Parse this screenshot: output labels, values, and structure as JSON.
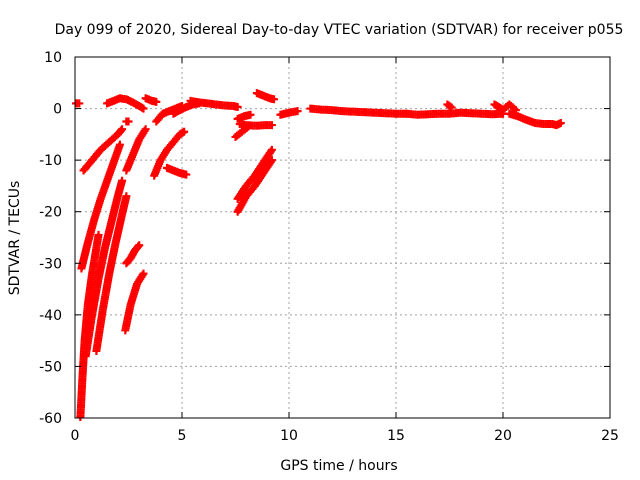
{
  "chart_data": {
    "type": "scatter",
    "title": "Day 099 of 2020, Sidereal Day-to-day VTEC variation (SDTVAR) for receiver p055",
    "xlabel": "GPS time / hours",
    "ylabel": "SDTVAR / TECUs",
    "xlim": [
      0,
      25
    ],
    "ylim": [
      -60,
      10
    ],
    "xticks": [
      "0",
      "5",
      "10",
      "15",
      "20",
      "25"
    ],
    "yticks": [
      "10",
      "0",
      "-10",
      "-20",
      "-30",
      "-40",
      "-50",
      "-60"
    ],
    "grid": true,
    "marker": "+",
    "color": "#ff0000",
    "arcs": [
      {
        "x": [
          0.0,
          0.2
        ],
        "y": [
          1.0,
          1.0
        ]
      },
      {
        "x": [
          0.25,
          0.35,
          0.45,
          0.6,
          0.8,
          1.0,
          1.1
        ],
        "y": [
          -60.0,
          -52.0,
          -45.0,
          -38.0,
          -32.0,
          -27.0,
          -24.5
        ]
      },
      {
        "x": [
          0.3,
          0.6,
          0.9,
          1.2,
          1.5,
          1.8,
          2.1
        ],
        "y": [
          -31.0,
          -26.0,
          -21.5,
          -17.5,
          -14.0,
          -10.5,
          -7.0
        ]
      },
      {
        "x": [
          0.4,
          0.8,
          1.2,
          1.6,
          2.0,
          2.2
        ],
        "y": [
          -12.0,
          -10.0,
          -8.0,
          -6.5,
          -5.0,
          -4.0
        ]
      },
      {
        "x": [
          0.5,
          0.8,
          1.1,
          1.4,
          1.7,
          2.0,
          2.2
        ],
        "y": [
          -48.0,
          -40.0,
          -33.0,
          -27.0,
          -22.0,
          -17.0,
          -14.0
        ]
      },
      {
        "x": [
          1.0,
          1.3,
          1.6,
          1.9,
          2.2,
          2.4
        ],
        "y": [
          -47.0,
          -39.0,
          -32.0,
          -26.0,
          -20.5,
          -17.0
        ]
      },
      {
        "x": [
          1.5,
          1.8,
          2.1,
          2.4,
          2.7,
          3.0,
          3.2
        ],
        "y": [
          1.0,
          1.5,
          2.0,
          1.8,
          1.2,
          0.5,
          0.0
        ]
      },
      {
        "x": [
          2.4,
          2.5
        ],
        "y": [
          -2.5,
          -2.5
        ]
      },
      {
        "x": [
          2.35,
          2.6,
          2.9,
          3.2
        ],
        "y": [
          -43.0,
          -38.0,
          -34.0,
          -32.0
        ]
      },
      {
        "x": [
          2.4,
          2.6,
          2.8,
          3.0
        ],
        "y": [
          -30.0,
          -29.0,
          -27.5,
          -26.5
        ]
      },
      {
        "x": [
          2.4,
          2.7,
          3.0,
          3.3
        ],
        "y": [
          -12.0,
          -9.0,
          -6.0,
          -4.0
        ]
      },
      {
        "x": [
          3.3,
          3.6,
          3.8
        ],
        "y": [
          2.0,
          1.5,
          1.3
        ]
      },
      {
        "x": [
          3.7,
          4.0,
          4.3,
          4.6,
          4.9,
          5.1
        ],
        "y": [
          -13.0,
          -10.0,
          -8.0,
          -6.5,
          -5.0,
          -4.5
        ]
      },
      {
        "x": [
          3.8,
          4.1,
          4.4,
          4.7,
          5.0
        ],
        "y": [
          -2.5,
          -1.0,
          -0.5,
          0.0,
          0.5
        ]
      },
      {
        "x": [
          4.3,
          4.6,
          4.9,
          5.2
        ],
        "y": [
          -11.5,
          -12.0,
          -12.5,
          -12.8
        ]
      },
      {
        "x": [
          4.6,
          4.9,
          5.2,
          5.5,
          5.8
        ],
        "y": [
          -1.0,
          -0.3,
          0.3,
          0.8,
          1.0
        ]
      },
      {
        "x": [
          5.4,
          5.8,
          6.2,
          6.6,
          7.0,
          7.4,
          7.6
        ],
        "y": [
          1.5,
          1.2,
          1.0,
          0.8,
          0.6,
          0.5,
          0.3
        ]
      },
      {
        "x": [
          7.5,
          7.8,
          8.1
        ],
        "y": [
          -5.5,
          -4.5,
          -3.5
        ]
      },
      {
        "x": [
          7.7,
          8.0,
          8.3,
          8.6,
          8.9,
          9.2
        ],
        "y": [
          -3.0,
          -3.2,
          -3.3,
          -3.3,
          -3.2,
          -3.2
        ]
      },
      {
        "x": [
          7.6,
          7.9,
          8.2
        ],
        "y": [
          -2.0,
          -1.5,
          -1.2
        ]
      },
      {
        "x": [
          7.6,
          8.0,
          8.4,
          8.8,
          9.2
        ],
        "y": [
          -20.0,
          -17.0,
          -15.0,
          -12.5,
          -10.0
        ]
      },
      {
        "x": [
          7.6,
          8.0,
          8.4,
          8.8,
          9.2
        ],
        "y": [
          -17.5,
          -15.0,
          -13.0,
          -10.5,
          -8.0
        ]
      },
      {
        "x": [
          8.5,
          8.8,
          9.1,
          9.3
        ],
        "y": [
          3.0,
          2.5,
          2.0,
          1.8
        ]
      },
      {
        "x": [
          9.6,
          10.0,
          10.4
        ],
        "y": [
          -1.2,
          -0.8,
          -0.5
        ]
      },
      {
        "x": [
          11.0,
          11.5,
          12.0,
          12.5,
          13.0,
          13.5,
          14.0,
          14.5,
          15.0,
          15.5
        ],
        "y": [
          0.0,
          -0.2,
          -0.3,
          -0.5,
          -0.6,
          -0.7,
          -0.8,
          -0.9,
          -1.0,
          -1.0
        ]
      },
      {
        "x": [
          15.5,
          16.0,
          16.5,
          17.0,
          17.5,
          18.0,
          18.5,
          19.0,
          19.5,
          20.0
        ],
        "y": [
          -1.0,
          -1.2,
          -1.1,
          -1.0,
          -1.0,
          -0.8,
          -0.9,
          -1.0,
          -1.1,
          -1.0
        ]
      },
      {
        "x": [
          17.4,
          17.6
        ],
        "y": [
          0.8,
          0.2
        ]
      },
      {
        "x": [
          19.6,
          19.8,
          20.0,
          20.3,
          20.6
        ],
        "y": [
          0.8,
          0.3,
          -0.2,
          0.8,
          -0.3
        ]
      },
      {
        "x": [
          20.3,
          20.7,
          21.1,
          21.5,
          21.9,
          22.2
        ],
        "y": [
          -1.0,
          -1.5,
          -2.2,
          -2.8,
          -3.0,
          -3.0
        ]
      },
      {
        "x": [
          22.3,
          22.5,
          22.7
        ],
        "y": [
          -3.0,
          -3.2,
          -2.8
        ]
      }
    ]
  }
}
